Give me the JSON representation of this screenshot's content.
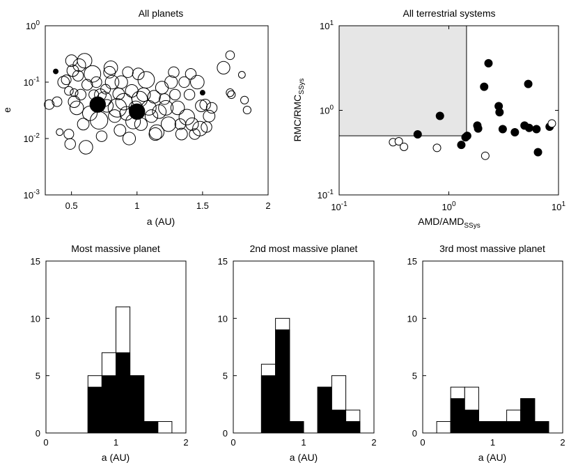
{
  "chart_data": [
    {
      "id": "p1",
      "type": "scatter",
      "title": "All planets",
      "xlabel": "a (AU)",
      "ylabel": "e",
      "xlim": [
        0.3,
        2.0
      ],
      "ylim": [
        0.001,
        1.0
      ],
      "yscale": "log",
      "xticks": [
        {
          "v": 0.5,
          "label": "0.5"
        },
        {
          "v": 1,
          "label": "1"
        },
        {
          "v": 1.5,
          "label": "1.5"
        },
        {
          "v": 2,
          "label": "2"
        }
      ],
      "yticks": [
        {
          "v": 1,
          "base": "10",
          "exp": "0"
        },
        {
          "v": 0.1,
          "base": "10",
          "exp": "-1"
        },
        {
          "v": 0.01,
          "base": "10",
          "exp": "-2"
        },
        {
          "v": 0.001,
          "base": "10",
          "exp": "-3"
        }
      ],
      "points": [
        {
          "x": 0.33,
          "y": 0.04,
          "s": 0.5
        },
        {
          "x": 0.38,
          "y": 0.155,
          "s": 0.25,
          "f": 1
        },
        {
          "x": 0.39,
          "y": 0.045,
          "s": 0.5
        },
        {
          "x": 0.41,
          "y": 0.013,
          "s": 0.35
        },
        {
          "x": 0.44,
          "y": 0.1,
          "s": 0.6
        },
        {
          "x": 0.46,
          "y": 0.11,
          "s": 0.5
        },
        {
          "x": 0.48,
          "y": 0.07,
          "s": 0.45
        },
        {
          "x": 0.48,
          "y": 0.012,
          "s": 0.5
        },
        {
          "x": 0.49,
          "y": 0.008,
          "s": 0.55
        },
        {
          "x": 0.5,
          "y": 0.24,
          "s": 0.6
        },
        {
          "x": 0.51,
          "y": 0.16,
          "s": 0.6
        },
        {
          "x": 0.52,
          "y": 0.065,
          "s": 0.4
        },
        {
          "x": 0.52,
          "y": 0.045,
          "s": 0.6
        },
        {
          "x": 0.54,
          "y": 0.035,
          "s": 0.7
        },
        {
          "x": 0.55,
          "y": 0.13,
          "s": 0.55
        },
        {
          "x": 0.56,
          "y": 0.2,
          "s": 0.65
        },
        {
          "x": 0.57,
          "y": 0.06,
          "s": 0.55
        },
        {
          "x": 0.59,
          "y": 0.018,
          "s": 0.6
        },
        {
          "x": 0.6,
          "y": 0.24,
          "s": 0.75
        },
        {
          "x": 0.61,
          "y": 0.007,
          "s": 0.7
        },
        {
          "x": 0.62,
          "y": 0.09,
          "s": 0.55
        },
        {
          "x": 0.64,
          "y": 0.028,
          "s": 0.75
        },
        {
          "x": 0.66,
          "y": 0.14,
          "s": 0.85
        },
        {
          "x": 0.67,
          "y": 0.06,
          "s": 0.5
        },
        {
          "x": 0.69,
          "y": 0.1,
          "s": 0.55
        },
        {
          "x": 0.7,
          "y": 0.04,
          "s": 0.8,
          "f": 1
        },
        {
          "x": 0.71,
          "y": 0.021,
          "s": 0.9
        },
        {
          "x": 0.72,
          "y": 0.06,
          "s": 0.6
        },
        {
          "x": 0.73,
          "y": 0.011,
          "s": 0.55
        },
        {
          "x": 0.75,
          "y": 0.05,
          "s": 0.75
        },
        {
          "x": 0.76,
          "y": 0.075,
          "s": 0.5
        },
        {
          "x": 0.77,
          "y": 0.038,
          "s": 0.65
        },
        {
          "x": 0.79,
          "y": 0.15,
          "s": 0.6
        },
        {
          "x": 0.8,
          "y": 0.18,
          "s": 0.7
        },
        {
          "x": 0.81,
          "y": 0.1,
          "s": 0.7
        },
        {
          "x": 0.83,
          "y": 0.025,
          "s": 0.65
        },
        {
          "x": 0.85,
          "y": 0.035,
          "s": 0.95
        },
        {
          "x": 0.86,
          "y": 0.062,
          "s": 0.6
        },
        {
          "x": 0.87,
          "y": 0.014,
          "s": 0.6
        },
        {
          "x": 0.88,
          "y": 0.1,
          "s": 0.65
        },
        {
          "x": 0.9,
          "y": 0.045,
          "s": 0.85
        },
        {
          "x": 0.92,
          "y": 0.028,
          "s": 0.7
        },
        {
          "x": 0.93,
          "y": 0.15,
          "s": 0.55
        },
        {
          "x": 0.94,
          "y": 0.01,
          "s": 0.65
        },
        {
          "x": 0.96,
          "y": 0.07,
          "s": 0.65
        },
        {
          "x": 0.97,
          "y": 0.02,
          "s": 0.75
        },
        {
          "x": 0.99,
          "y": 0.035,
          "s": 0.7
        },
        {
          "x": 1.0,
          "y": 0.03,
          "s": 0.8,
          "f": 1
        },
        {
          "x": 1.01,
          "y": 0.14,
          "s": 0.6
        },
        {
          "x": 1.02,
          "y": 0.05,
          "s": 0.8
        },
        {
          "x": 1.03,
          "y": 0.018,
          "s": 0.65
        },
        {
          "x": 1.05,
          "y": 0.06,
          "s": 0.7
        },
        {
          "x": 1.07,
          "y": 0.11,
          "s": 0.85
        },
        {
          "x": 1.09,
          "y": 0.035,
          "s": 0.75
        },
        {
          "x": 1.11,
          "y": 0.025,
          "s": 0.65
        },
        {
          "x": 1.13,
          "y": 0.055,
          "s": 0.65
        },
        {
          "x": 1.14,
          "y": 0.012,
          "s": 0.65
        },
        {
          "x": 1.15,
          "y": 0.013,
          "s": 0.75
        },
        {
          "x": 1.17,
          "y": 0.03,
          "s": 0.7
        },
        {
          "x": 1.19,
          "y": 0.08,
          "s": 0.65
        },
        {
          "x": 1.21,
          "y": 0.05,
          "s": 0.55
        },
        {
          "x": 1.22,
          "y": 0.035,
          "s": 0.75
        },
        {
          "x": 1.24,
          "y": 0.018,
          "s": 0.75
        },
        {
          "x": 1.26,
          "y": 0.1,
          "s": 0.65
        },
        {
          "x": 1.28,
          "y": 0.15,
          "s": 0.55
        },
        {
          "x": 1.29,
          "y": 0.06,
          "s": 0.55
        },
        {
          "x": 1.31,
          "y": 0.035,
          "s": 0.7
        },
        {
          "x": 1.33,
          "y": 0.018,
          "s": 0.55
        },
        {
          "x": 1.34,
          "y": 0.012,
          "s": 0.6
        },
        {
          "x": 1.36,
          "y": 0.1,
          "s": 0.55
        },
        {
          "x": 1.38,
          "y": 0.024,
          "s": 0.8
        },
        {
          "x": 1.4,
          "y": 0.06,
          "s": 0.55
        },
        {
          "x": 1.41,
          "y": 0.14,
          "s": 0.55
        },
        {
          "x": 1.42,
          "y": 0.018,
          "s": 0.65
        },
        {
          "x": 1.44,
          "y": 0.012,
          "s": 0.55
        },
        {
          "x": 1.46,
          "y": 0.1,
          "s": 0.7
        },
        {
          "x": 1.48,
          "y": 0.015,
          "s": 0.75
        },
        {
          "x": 1.49,
          "y": 0.038,
          "s": 0.6
        },
        {
          "x": 1.5,
          "y": 0.065,
          "s": 0.25,
          "f": 1
        },
        {
          "x": 1.52,
          "y": 0.04,
          "s": 0.55
        },
        {
          "x": 1.53,
          "y": 0.016,
          "s": 0.55
        },
        {
          "x": 1.55,
          "y": 0.025,
          "s": 0.6
        },
        {
          "x": 1.57,
          "y": 0.035,
          "s": 0.55
        },
        {
          "x": 1.66,
          "y": 0.18,
          "s": 0.65
        },
        {
          "x": 1.71,
          "y": 0.3,
          "s": 0.45
        },
        {
          "x": 1.71,
          "y": 0.065,
          "s": 0.4
        },
        {
          "x": 1.72,
          "y": 0.06,
          "s": 0.4
        },
        {
          "x": 1.8,
          "y": 0.135,
          "s": 0.35
        },
        {
          "x": 1.82,
          "y": 0.048,
          "s": 0.4
        },
        {
          "x": 1.84,
          "y": 0.032,
          "s": 0.4
        }
      ]
    },
    {
      "id": "p2",
      "type": "scatter",
      "title": "All terrestrial systems",
      "xlabel_main": "AMD/AMD",
      "xlabel_sub": "SSys",
      "ylabel_main": "RMC/RMC",
      "ylabel_sub": "SSys",
      "xlim": [
        0.1,
        10
      ],
      "ylim": [
        0.1,
        10
      ],
      "xscale": "log",
      "yscale": "log",
      "xticks": [
        {
          "v": 0.1,
          "base": "10",
          "exp": "-1"
        },
        {
          "v": 1,
          "base": "10",
          "exp": "0"
        },
        {
          "v": 10,
          "base": "10",
          "exp": "1"
        }
      ],
      "yticks": [
        {
          "v": 10,
          "base": "10",
          "exp": "1"
        },
        {
          "v": 1,
          "base": "10",
          "exp": "0"
        },
        {
          "v": 0.1,
          "base": "10",
          "exp": "-1"
        }
      ],
      "shaded_region": {
        "x": [
          0.1,
          1.45
        ],
        "y": [
          0.5,
          10
        ]
      },
      "points": [
        {
          "x": 0.31,
          "y": 0.42,
          "f": 0
        },
        {
          "x": 0.35,
          "y": 0.43,
          "f": 0
        },
        {
          "x": 0.39,
          "y": 0.37,
          "f": 0
        },
        {
          "x": 0.52,
          "y": 0.52,
          "f": 1
        },
        {
          "x": 0.78,
          "y": 0.36,
          "f": 0
        },
        {
          "x": 0.83,
          "y": 0.86,
          "f": 1
        },
        {
          "x": 1.3,
          "y": 0.39,
          "f": 1
        },
        {
          "x": 1.42,
          "y": 0.48,
          "f": 1
        },
        {
          "x": 1.47,
          "y": 0.5,
          "f": 1
        },
        {
          "x": 1.82,
          "y": 0.66,
          "f": 1
        },
        {
          "x": 1.85,
          "y": 0.61,
          "f": 1
        },
        {
          "x": 2.1,
          "y": 1.9,
          "f": 1
        },
        {
          "x": 2.15,
          "y": 0.29,
          "f": 0
        },
        {
          "x": 2.3,
          "y": 3.6,
          "f": 1
        },
        {
          "x": 2.85,
          "y": 1.12,
          "f": 1
        },
        {
          "x": 2.9,
          "y": 0.95,
          "f": 1
        },
        {
          "x": 3.1,
          "y": 0.6,
          "f": 1
        },
        {
          "x": 4.0,
          "y": 0.55,
          "f": 1
        },
        {
          "x": 4.9,
          "y": 0.66,
          "f": 1
        },
        {
          "x": 5.3,
          "y": 2.05,
          "f": 1
        },
        {
          "x": 5.4,
          "y": 0.62,
          "f": 1
        },
        {
          "x": 6.3,
          "y": 0.6,
          "f": 1
        },
        {
          "x": 6.5,
          "y": 0.32,
          "f": 1
        },
        {
          "x": 8.3,
          "y": 0.64,
          "f": 1
        },
        {
          "x": 8.7,
          "y": 0.7,
          "f": 0
        }
      ]
    },
    {
      "id": "h1",
      "type": "bar",
      "stacked": true,
      "title": "Most massive planet",
      "xlabel": "a (AU)",
      "xlim": [
        0,
        2
      ],
      "ylim": [
        0,
        15
      ],
      "xticks": [
        "0",
        "1",
        "2"
      ],
      "yticks": [
        "0",
        "5",
        "10",
        "15"
      ],
      "bin_edges": [
        0.2,
        0.4,
        0.6,
        0.8,
        1.0,
        1.2,
        1.4,
        1.6,
        1.8
      ],
      "series": [
        {
          "name": "filled",
          "values": [
            0,
            0,
            4,
            5,
            7,
            5,
            1,
            0
          ]
        },
        {
          "name": "total",
          "values": [
            0,
            0,
            5,
            7,
            11,
            5,
            1,
            1
          ]
        }
      ]
    },
    {
      "id": "h2",
      "type": "bar",
      "stacked": true,
      "title": "2nd most massive planet",
      "xlabel": "a (AU)",
      "xlim": [
        0,
        2
      ],
      "ylim": [
        0,
        15
      ],
      "xticks": [
        "0",
        "1",
        "2"
      ],
      "yticks": [
        "0",
        "5",
        "10",
        "15"
      ],
      "bin_edges": [
        0.2,
        0.4,
        0.6,
        0.8,
        1.0,
        1.2,
        1.4,
        1.6,
        1.8
      ],
      "series": [
        {
          "name": "filled",
          "values": [
            0,
            5,
            9,
            1,
            0,
            4,
            2,
            1
          ]
        },
        {
          "name": "total",
          "values": [
            0,
            6,
            10,
            1,
            0,
            4,
            5,
            2
          ]
        }
      ]
    },
    {
      "id": "h3",
      "type": "bar",
      "stacked": true,
      "title": "3rd most massive planet",
      "xlabel": "a (AU)",
      "xlim": [
        0,
        2
      ],
      "ylim": [
        0,
        15
      ],
      "xticks": [
        "0",
        "1",
        "2"
      ],
      "yticks": [
        "0",
        "5",
        "10",
        "15"
      ],
      "bin_edges": [
        0.2,
        0.4,
        0.6,
        0.8,
        1.0,
        1.2,
        1.4,
        1.6,
        1.8
      ],
      "series": [
        {
          "name": "filled",
          "values": [
            0,
            3,
            2,
            1,
            1,
            1,
            3,
            1
          ]
        },
        {
          "name": "total",
          "values": [
            1,
            4,
            4,
            1,
            1,
            2,
            3,
            1
          ]
        }
      ]
    }
  ]
}
